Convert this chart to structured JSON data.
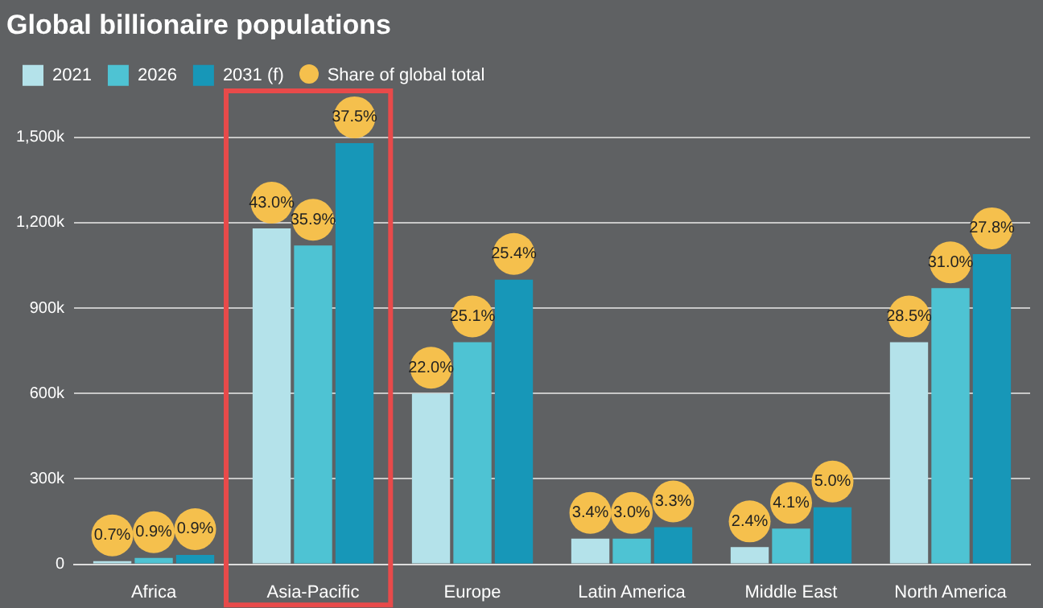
{
  "chart_data": {
    "type": "bar",
    "title": "Global billionaire populations",
    "categories": [
      "Africa",
      "Asia-Pacific",
      "Europe",
      "Latin America",
      "Middle East",
      "North America"
    ],
    "series": [
      {
        "name": "2021",
        "color": "#b4e2ea",
        "values": [
          11,
          1180,
          600,
          90,
          60,
          780
        ]
      },
      {
        "name": "2026",
        "color": "#4ec3d3",
        "values": [
          22,
          1120,
          780,
          90,
          125,
          970
        ]
      },
      {
        "name": "2031 (f)",
        "color": "#1797b8",
        "values": [
          33,
          1480,
          1000,
          130,
          200,
          1090
        ]
      }
    ],
    "annotations": [
      "Share of global total",
      "0.7%",
      "0.9%",
      "0.9%",
      "43.0%",
      "35.9%",
      "37.5%",
      "22.0%",
      "25.1%",
      "25.4%",
      "3.4%",
      "3.0%",
      "3.3%",
      "2.4%",
      "4.1%",
      "5.0%",
      "28.5%",
      "31.0%",
      "27.8%"
    ],
    "ylim": [
      0,
      1500
    ],
    "yticks": [
      0,
      {
        "value": 300,
        "label": "300k"
      },
      {
        "value": 600,
        "label": "600k"
      },
      {
        "value": 900,
        "label": "900k"
      },
      {
        "value": 1200,
        "label": "1,200k"
      },
      {
        "value": 1500,
        "label": "1,500k"
      }
    ],
    "grid": "y",
    "legend": "top left"
  }
}
